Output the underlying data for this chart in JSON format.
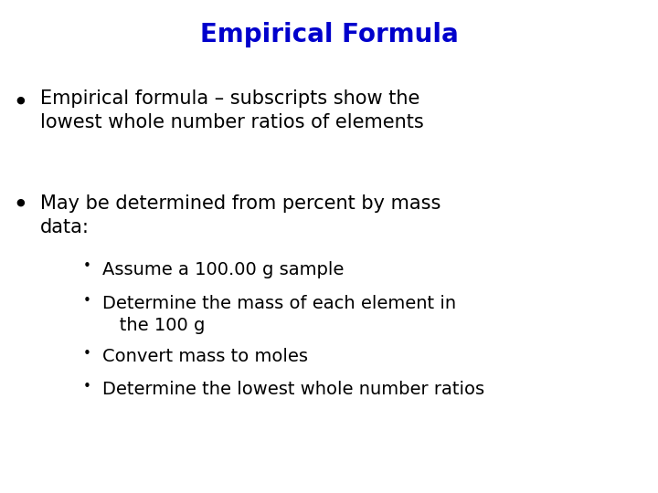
{
  "title": "Empirical Formula",
  "title_color": "#0000CC",
  "title_fontsize": 20,
  "background_color": "#FFFFFF",
  "text_color": "#000000",
  "body_fontsize": 15,
  "sub_fontsize": 14,
  "bullet_fontsize": 8,
  "bullet1_line1": "Empirical formula – subscripts show the",
  "bullet1_line2": "lowest whole number ratios of elements",
  "bullet2_line1": "May be determined from percent by mass",
  "bullet2_line2": "data:",
  "sub1": "Assume a 100.00 g sample",
  "sub2_line1": "Determine the mass of each element in",
  "sub2_line2": "   the 100 g",
  "sub3": "Convert mass to moles",
  "sub4": "Determine the lowest whole number ratios"
}
